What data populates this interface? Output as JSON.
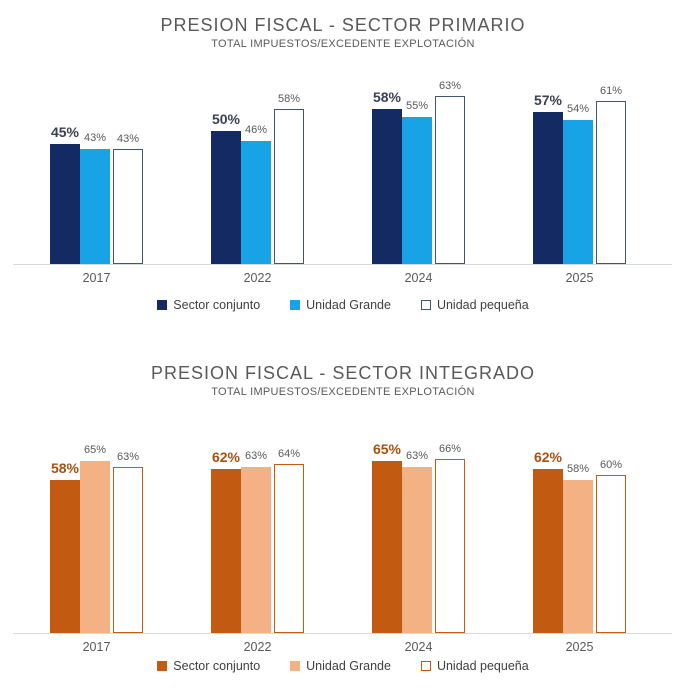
{
  "page": {
    "background": "#ffffff"
  },
  "chart_data": [
    {
      "type": "bar",
      "title": "PRESION FISCAL - SECTOR PRIMARIO",
      "subtitle": "TOTAL IMPUESTOS/EXCEDENTE EXPLOTACIÓN",
      "categories": [
        "2017",
        "2022",
        "2024",
        "2025"
      ],
      "series": [
        {
          "name": "Sector conjunto",
          "color": "#142a63",
          "values": [
            45,
            50,
            58,
            57
          ],
          "label_bold": true,
          "label_color": "#3a4154"
        },
        {
          "name": "Unidad Grande",
          "color": "#17a3e5",
          "values": [
            43,
            46,
            55,
            54
          ],
          "label_color": "#595959"
        },
        {
          "name": "Unidad pequeña",
          "color": "#ffffff",
          "border_color": "#44546a",
          "values": [
            43,
            58,
            63,
            61
          ],
          "label_color": "#595959"
        }
      ],
      "xlabel": "",
      "ylabel": "",
      "ylim": [
        0,
        70
      ],
      "grid": false,
      "y_axis_visible": false,
      "legend_position": "bottom",
      "value_suffix": "%",
      "axis_line_color": "#d9d9d9",
      "title_color": "#595959",
      "tick_label_color": "#595959"
    },
    {
      "type": "bar",
      "title": "PRESION FISCAL - SECTOR INTEGRADO",
      "subtitle": "TOTAL IMPUESTOS/EXCEDENTE EXPLOTACIÓN",
      "categories": [
        "2017",
        "2022",
        "2024",
        "2025"
      ],
      "series": [
        {
          "name": "Sector conjunto",
          "color": "#c25a11",
          "values": [
            58,
            62,
            65,
            62
          ],
          "label_bold": true,
          "label_color": "#a8500e"
        },
        {
          "name": "Unidad Grande",
          "color": "#f4b183",
          "values": [
            65,
            63,
            63,
            58
          ],
          "label_color": "#595959"
        },
        {
          "name": "Unidad pequeña",
          "color": "#ffffff",
          "border_color": "#c25a11",
          "values": [
            63,
            64,
            66,
            60
          ],
          "label_color": "#595959"
        }
      ],
      "xlabel": "",
      "ylabel": "",
      "ylim": [
        0,
        70
      ],
      "grid": false,
      "y_axis_visible": false,
      "legend_position": "bottom",
      "value_suffix": "%",
      "axis_line_color": "#d9d9d9",
      "title_color": "#595959",
      "tick_label_color": "#595959"
    }
  ]
}
